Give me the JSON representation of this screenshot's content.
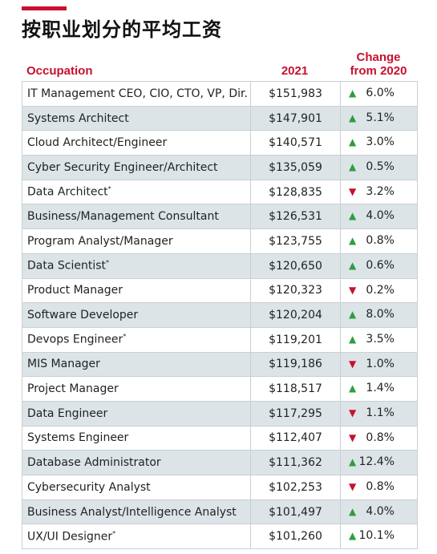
{
  "header": {
    "title": "按职业划分的平均工资"
  },
  "table": {
    "columns": [
      "Occupation",
      "2021",
      "Change",
      "from 2020"
    ],
    "up_symbol": "▲",
    "down_symbol": "▼",
    "rows": [
      {
        "occupation": "IT Management CEO, CIO, CTO, VP, Dir.",
        "salary": "$151,983",
        "change": "6.0%",
        "direction": "up"
      },
      {
        "occupation": "Systems Architect",
        "salary": "$147,901",
        "change": "5.1%",
        "direction": "up"
      },
      {
        "occupation": "Cloud Architect/Engineer",
        "salary": "$140,571",
        "change": "3.0%",
        "direction": "up"
      },
      {
        "occupation": "Cyber Security Engineer/Architect",
        "salary": "$135,059",
        "change": "0.5%",
        "direction": "up"
      },
      {
        "occupation": "Data Architect",
        "note": "*",
        "salary": "$128,835",
        "change": "3.2%",
        "direction": "down"
      },
      {
        "occupation": "Business/Management Consultant",
        "salary": "$126,531",
        "change": "4.0%",
        "direction": "up"
      },
      {
        "occupation": "Program Analyst/Manager",
        "salary": "$123,755",
        "change": "0.8%",
        "direction": "up"
      },
      {
        "occupation": "Data Scientist",
        "note": "*",
        "salary": "$120,650",
        "change": "0.6%",
        "direction": "up"
      },
      {
        "occupation": "Product Manager",
        "salary": "$120,323",
        "change": "0.2%",
        "direction": "down"
      },
      {
        "occupation": "Software Developer",
        "salary": "$120,204",
        "change": "8.0%",
        "direction": "up"
      },
      {
        "occupation": "Devops Engineer",
        "note": "*",
        "salary": "$119,201",
        "change": "3.5%",
        "direction": "up"
      },
      {
        "occupation": "MIS Manager",
        "salary": "$119,186",
        "change": "1.0%",
        "direction": "down"
      },
      {
        "occupation": "Project Manager",
        "salary": "$118,517",
        "change": "1.4%",
        "direction": "up"
      },
      {
        "occupation": "Data Engineer",
        "salary": "$117,295",
        "change": "1.1%",
        "direction": "down"
      },
      {
        "occupation": "Systems Engineer",
        "salary": "$112,407",
        "change": "0.8%",
        "direction": "down"
      },
      {
        "occupation": "Database Administrator",
        "salary": "$111,362",
        "change": "12.4%",
        "direction": "up"
      },
      {
        "occupation": "Cybersecurity Analyst",
        "salary": "$102,253",
        "change": "0.8%",
        "direction": "down"
      },
      {
        "occupation": "Business Analyst/Intelligence Analyst",
        "salary": "$101,497",
        "change": "4.0%",
        "direction": "up"
      },
      {
        "occupation": "UX/UI Designer",
        "note": "*",
        "salary": "$101,260",
        "change": "10.1%",
        "direction": "up"
      }
    ]
  }
}
